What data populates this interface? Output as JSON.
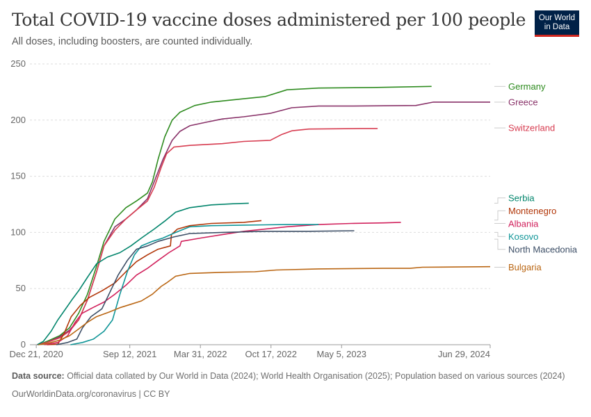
{
  "header": {
    "title": "Total COVID-19 vaccine doses administered per 100 people",
    "subtitle": "All doses, including boosters, are counted individually.",
    "logo_line1": "Our World",
    "logo_line2": "in Data"
  },
  "footer": {
    "source_label": "Data source:",
    "source_text": "Official data collated by Our World in Data (2024); World Health Organisation (2025); Population based on various sources (2024)",
    "license": "OurWorldinData.org/coronavirus | CC BY"
  },
  "colors": {
    "logo_bg": "#002147",
    "logo_accent": "#ce261e"
  },
  "chart_data": {
    "type": "line",
    "title": "Total COVID-19 vaccine doses administered per 100 people",
    "xlim": [
      "2020-12-03",
      "2024-06-29"
    ],
    "ylim": [
      0,
      250
    ],
    "y_ticks": [
      0,
      50,
      100,
      150,
      200,
      250
    ],
    "y_tick_labels": [
      "0",
      "50",
      "100",
      "150",
      "200",
      "250"
    ],
    "x_ticks": [
      "2020-12-21",
      "2021-09-12",
      "2022-03-31",
      "2022-10-17",
      "2023-05-05",
      "2024-06-29"
    ],
    "x_tick_labels": [
      "Dec 21, 2020",
      "Sep 12, 2021",
      "Mar 31, 2022",
      "Oct 17, 2022",
      "May 5, 2023",
      "Jun 29, 2024"
    ],
    "grid": "horizontal dashed",
    "legend": "right, labels at line ends",
    "series": [
      {
        "name": "Germany",
        "color": "#2e8b1f",
        "label_y": 230,
        "points": [
          [
            "2020-12-27",
            0
          ],
          [
            "2021-01-20",
            3
          ],
          [
            "2021-02-25",
            8
          ],
          [
            "2021-03-25",
            15
          ],
          [
            "2021-04-20",
            28
          ],
          [
            "2021-05-15",
            45
          ],
          [
            "2021-06-10",
            70
          ],
          [
            "2021-07-01",
            92
          ],
          [
            "2021-08-01",
            112
          ],
          [
            "2021-09-01",
            122
          ],
          [
            "2021-10-01",
            128
          ],
          [
            "2021-11-01",
            135
          ],
          [
            "2021-11-15",
            145
          ],
          [
            "2021-12-01",
            165
          ],
          [
            "2021-12-20",
            185
          ],
          [
            "2022-01-10",
            200
          ],
          [
            "2022-02-01",
            207
          ],
          [
            "2022-03-15",
            213
          ],
          [
            "2022-05-01",
            216
          ],
          [
            "2022-08-01",
            219
          ],
          [
            "2022-10-01",
            221
          ],
          [
            "2022-12-01",
            227
          ],
          [
            "2023-03-01",
            228.5
          ],
          [
            "2023-08-01",
            229
          ],
          [
            "2024-01-15",
            230
          ]
        ]
      },
      {
        "name": "Greece",
        "color": "#883168",
        "label_y": 216,
        "points": [
          [
            "2020-12-27",
            0
          ],
          [
            "2021-01-20",
            2
          ],
          [
            "2021-02-25",
            7
          ],
          [
            "2021-03-25",
            13
          ],
          [
            "2021-04-20",
            22
          ],
          [
            "2021-05-15",
            40
          ],
          [
            "2021-06-10",
            65
          ],
          [
            "2021-07-01",
            88
          ],
          [
            "2021-08-01",
            105
          ],
          [
            "2021-09-01",
            112
          ],
          [
            "2021-10-01",
            120
          ],
          [
            "2021-11-01",
            130
          ],
          [
            "2021-11-20",
            145
          ],
          [
            "2021-12-15",
            165
          ],
          [
            "2022-01-10",
            182
          ],
          [
            "2022-02-01",
            190
          ],
          [
            "2022-03-01",
            195
          ],
          [
            "2022-04-15",
            198
          ],
          [
            "2022-06-01",
            201
          ],
          [
            "2022-08-01",
            203
          ],
          [
            "2022-10-15",
            206
          ],
          [
            "2022-12-15",
            211
          ],
          [
            "2023-03-01",
            212.5
          ],
          [
            "2023-06-01",
            212.5
          ],
          [
            "2023-12-01",
            213
          ],
          [
            "2024-01-20",
            216
          ],
          [
            "2024-06-29",
            216
          ]
        ]
      },
      {
        "name": "Switzerland",
        "color": "#d73c50",
        "label_y": 193,
        "points": [
          [
            "2020-12-23",
            0
          ],
          [
            "2021-01-20",
            2
          ],
          [
            "2021-02-25",
            6
          ],
          [
            "2021-03-25",
            12
          ],
          [
            "2021-04-20",
            22
          ],
          [
            "2021-05-15",
            40
          ],
          [
            "2021-06-10",
            65
          ],
          [
            "2021-07-01",
            88
          ],
          [
            "2021-08-01",
            102
          ],
          [
            "2021-09-01",
            112
          ],
          [
            "2021-10-01",
            120
          ],
          [
            "2021-11-01",
            128
          ],
          [
            "2021-11-20",
            140
          ],
          [
            "2021-12-10",
            158
          ],
          [
            "2021-12-25",
            170
          ],
          [
            "2022-01-15",
            176
          ],
          [
            "2022-03-01",
            177.5
          ],
          [
            "2022-06-01",
            179
          ],
          [
            "2022-08-01",
            181
          ],
          [
            "2022-10-15",
            182
          ],
          [
            "2022-11-15",
            187
          ],
          [
            "2022-12-15",
            190.5
          ],
          [
            "2023-02-01",
            192
          ],
          [
            "2023-07-01",
            192.5
          ],
          [
            "2023-08-15",
            192.5
          ]
        ]
      },
      {
        "name": "Serbia",
        "color": "#00846b",
        "label_y": 126,
        "points": [
          [
            "2020-12-24",
            0
          ],
          [
            "2021-01-10",
            3
          ],
          [
            "2021-02-01",
            12
          ],
          [
            "2021-02-20",
            22
          ],
          [
            "2021-03-10",
            30
          ],
          [
            "2021-04-01",
            40
          ],
          [
            "2021-04-20",
            48
          ],
          [
            "2021-05-15",
            60
          ],
          [
            "2021-06-10",
            72
          ],
          [
            "2021-07-10",
            78
          ],
          [
            "2021-08-15",
            82
          ],
          [
            "2021-09-15",
            88
          ],
          [
            "2021-10-15",
            95
          ],
          [
            "2021-11-20",
            103
          ],
          [
            "2021-12-20",
            110
          ],
          [
            "2022-01-20",
            118
          ],
          [
            "2022-03-01",
            122
          ],
          [
            "2022-05-01",
            124.5
          ],
          [
            "2022-07-01",
            125.5
          ],
          [
            "2022-08-15",
            126
          ]
        ]
      },
      {
        "name": "Montenegro",
        "color": "#b13507",
        "label_y": 111,
        "points": [
          [
            "2021-01-20",
            0
          ],
          [
            "2021-02-20",
            0.5
          ],
          [
            "2021-03-10",
            10
          ],
          [
            "2021-03-30",
            25
          ],
          [
            "2021-04-25",
            35
          ],
          [
            "2021-05-20",
            42
          ],
          [
            "2021-06-25",
            48
          ],
          [
            "2021-08-01",
            55
          ],
          [
            "2021-09-01",
            65
          ],
          [
            "2021-10-01",
            74
          ],
          [
            "2021-11-01",
            80
          ],
          [
            "2021-12-01",
            85
          ],
          [
            "2022-01-05",
            88
          ],
          [
            "2022-01-08",
            98
          ],
          [
            "2022-01-25",
            103
          ],
          [
            "2022-03-01",
            106
          ],
          [
            "2022-05-01",
            108
          ],
          [
            "2022-08-01",
            109
          ],
          [
            "2022-09-20",
            110.5
          ]
        ]
      },
      {
        "name": "Albania",
        "color": "#d1215c",
        "label_y": 108,
        "points": [
          [
            "2021-01-13",
            0
          ],
          [
            "2021-02-20",
            2
          ],
          [
            "2021-03-20",
            8
          ],
          [
            "2021-04-10",
            20
          ],
          [
            "2021-04-30",
            28
          ],
          [
            "2021-05-30",
            33
          ],
          [
            "2021-07-01",
            38
          ],
          [
            "2021-08-01",
            45
          ],
          [
            "2021-09-01",
            53
          ],
          [
            "2021-10-01",
            62
          ],
          [
            "2021-11-01",
            68
          ],
          [
            "2021-12-01",
            75
          ],
          [
            "2022-01-01",
            82
          ],
          [
            "2022-02-01",
            88
          ],
          [
            "2022-02-05",
            92
          ],
          [
            "2022-04-01",
            95
          ],
          [
            "2022-06-01",
            98
          ],
          [
            "2022-08-01",
            101
          ],
          [
            "2022-10-01",
            103
          ],
          [
            "2022-12-01",
            105
          ],
          [
            "2023-03-01",
            107
          ],
          [
            "2023-06-01",
            108
          ],
          [
            "2023-09-01",
            108.5
          ],
          [
            "2023-10-20",
            109
          ]
        ]
      },
      {
        "name": "Kosovo",
        "color": "#0f9597",
        "label_y": 100,
        "points": [
          [
            "2021-03-28",
            0
          ],
          [
            "2021-05-01",
            2
          ],
          [
            "2021-06-01",
            5
          ],
          [
            "2021-07-01",
            12
          ],
          [
            "2021-07-25",
            22
          ],
          [
            "2021-08-15",
            45
          ],
          [
            "2021-09-05",
            65
          ],
          [
            "2021-09-25",
            80
          ],
          [
            "2021-10-15",
            88
          ],
          [
            "2021-11-15",
            92
          ],
          [
            "2021-12-15",
            95
          ],
          [
            "2022-01-20",
            100
          ],
          [
            "2022-03-01",
            105
          ],
          [
            "2022-05-01",
            106
          ],
          [
            "2022-08-01",
            106.5
          ],
          [
            "2022-12-01",
            107
          ],
          [
            "2023-03-01",
            107
          ]
        ]
      },
      {
        "name": "North Macedonia",
        "color": "#3c4e66",
        "label_y": 94,
        "points": [
          [
            "2021-02-16",
            0
          ],
          [
            "2021-03-20",
            2
          ],
          [
            "2021-04-15",
            5
          ],
          [
            "2021-05-01",
            15
          ],
          [
            "2021-05-25",
            25
          ],
          [
            "2021-06-25",
            32
          ],
          [
            "2021-07-15",
            45
          ],
          [
            "2021-08-10",
            62
          ],
          [
            "2021-09-05",
            75
          ],
          [
            "2021-10-01",
            85
          ],
          [
            "2021-11-01",
            88
          ],
          [
            "2021-12-01",
            92
          ],
          [
            "2022-01-15",
            96
          ],
          [
            "2022-03-01",
            99
          ],
          [
            "2022-06-01",
            100
          ],
          [
            "2022-10-01",
            101
          ],
          [
            "2023-02-01",
            101
          ],
          [
            "2023-06-10",
            101.5
          ]
        ]
      },
      {
        "name": "Bulgaria",
        "color": "#ba6613",
        "label_y": 69,
        "points": [
          [
            "2020-12-27",
            0
          ],
          [
            "2021-01-20",
            1
          ],
          [
            "2021-02-25",
            4
          ],
          [
            "2021-03-25",
            8
          ],
          [
            "2021-04-20",
            14
          ],
          [
            "2021-05-15",
            20
          ],
          [
            "2021-06-10",
            25
          ],
          [
            "2021-07-15",
            29
          ],
          [
            "2021-08-15",
            33
          ],
          [
            "2021-09-15",
            36
          ],
          [
            "2021-10-15",
            39
          ],
          [
            "2021-11-15",
            45
          ],
          [
            "2021-12-10",
            52
          ],
          [
            "2021-12-25",
            55
          ],
          [
            "2022-01-20",
            61
          ],
          [
            "2022-03-01",
            63.5
          ],
          [
            "2022-06-01",
            64.5
          ],
          [
            "2022-09-01",
            65
          ],
          [
            "2022-11-01",
            66.5
          ],
          [
            "2023-03-01",
            67.5
          ],
          [
            "2023-09-01",
            68
          ],
          [
            "2023-11-15",
            68
          ],
          [
            "2023-12-20",
            69
          ],
          [
            "2024-06-29",
            69.5
          ]
        ]
      }
    ]
  }
}
